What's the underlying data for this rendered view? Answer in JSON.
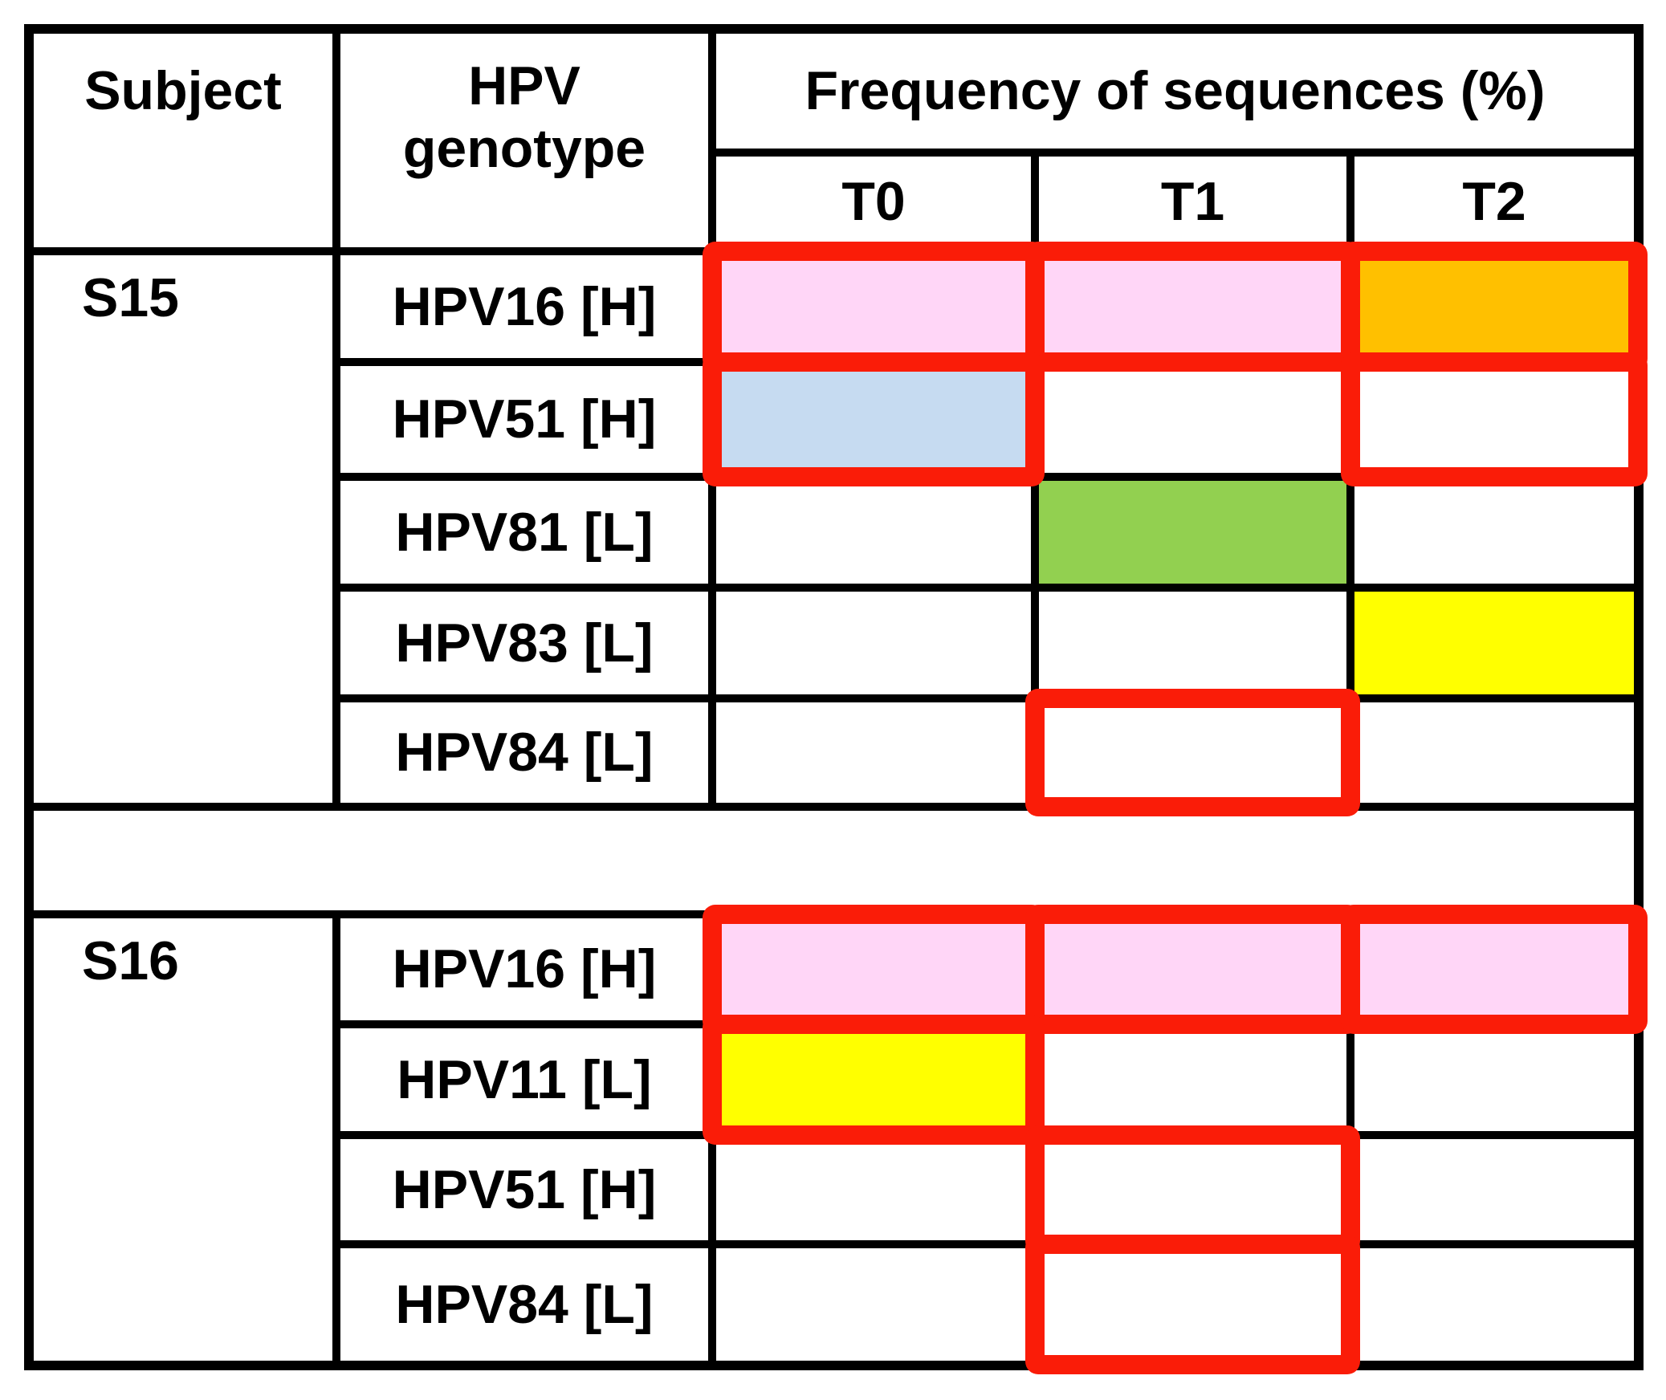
{
  "colors": {
    "pink": "#ffd6f7",
    "light_blue": "#c6dbf1",
    "orange": "#ffc000",
    "green": "#92d050",
    "yellow": "#ffff00",
    "white": "#ffffff",
    "red_outline": "#fa1c08",
    "grid_line": "#000000"
  },
  "chart_data": {
    "type": "table",
    "headers": {
      "subject": "Subject",
      "genotype": "HPV genotype",
      "frequency_group": "Frequency of sequences (%)",
      "timepoints": [
        "T0",
        "T1",
        "T2"
      ]
    },
    "sections": [
      {
        "subject": "S15",
        "rows": [
          {
            "genotype": "HPV16 [H]",
            "cells": [
              {
                "fill": "#ffd6f7",
                "fill_name": "pink",
                "outlined": true
              },
              {
                "fill": "#ffd6f7",
                "fill_name": "pink",
                "outlined": true
              },
              {
                "fill": "#ffc000",
                "fill_name": "orange",
                "outlined": true
              }
            ]
          },
          {
            "genotype": "HPV51 [H]",
            "cells": [
              {
                "fill": "#c6dbf1",
                "fill_name": "light_blue",
                "outlined": true
              },
              {
                "fill": "#ffffff",
                "fill_name": "white",
                "outlined": false
              },
              {
                "fill": "#ffffff",
                "fill_name": "white",
                "outlined": true
              }
            ]
          },
          {
            "genotype": "HPV81 [L]",
            "cells": [
              {
                "fill": "#ffffff",
                "fill_name": "white",
                "outlined": false
              },
              {
                "fill": "#92d050",
                "fill_name": "green",
                "outlined": false
              },
              {
                "fill": "#ffffff",
                "fill_name": "white",
                "outlined": false
              }
            ]
          },
          {
            "genotype": "HPV83 [L]",
            "cells": [
              {
                "fill": "#ffffff",
                "fill_name": "white",
                "outlined": false
              },
              {
                "fill": "#ffffff",
                "fill_name": "white",
                "outlined": false
              },
              {
                "fill": "#ffff00",
                "fill_name": "yellow",
                "outlined": false
              }
            ]
          },
          {
            "genotype": "HPV84 [L]",
            "cells": [
              {
                "fill": "#ffffff",
                "fill_name": "white",
                "outlined": false
              },
              {
                "fill": "#ffffff",
                "fill_name": "white",
                "outlined": true
              },
              {
                "fill": "#ffffff",
                "fill_name": "white",
                "outlined": false
              }
            ]
          }
        ]
      },
      {
        "subject": "S16",
        "rows": [
          {
            "genotype": "HPV16 [H]",
            "cells": [
              {
                "fill": "#ffd6f7",
                "fill_name": "pink",
                "outlined": true
              },
              {
                "fill": "#ffd6f7",
                "fill_name": "pink",
                "outlined": true
              },
              {
                "fill": "#ffd6f7",
                "fill_name": "pink",
                "outlined": true
              }
            ]
          },
          {
            "genotype": "HPV11 [L]",
            "cells": [
              {
                "fill": "#ffff00",
                "fill_name": "yellow",
                "outlined": true
              },
              {
                "fill": "#ffffff",
                "fill_name": "white",
                "outlined": false
              },
              {
                "fill": "#ffffff",
                "fill_name": "white",
                "outlined": false
              }
            ]
          },
          {
            "genotype": "HPV51 [H]",
            "cells": [
              {
                "fill": "#ffffff",
                "fill_name": "white",
                "outlined": false
              },
              {
                "fill": "#ffffff",
                "fill_name": "white",
                "outlined": true
              },
              {
                "fill": "#ffffff",
                "fill_name": "white",
                "outlined": false
              }
            ]
          },
          {
            "genotype": "HPV84 [L]",
            "cells": [
              {
                "fill": "#ffffff",
                "fill_name": "white",
                "outlined": false
              },
              {
                "fill": "#ffffff",
                "fill_name": "white",
                "outlined": true
              },
              {
                "fill": "#ffffff",
                "fill_name": "white",
                "outlined": false
              }
            ]
          }
        ]
      }
    ]
  }
}
